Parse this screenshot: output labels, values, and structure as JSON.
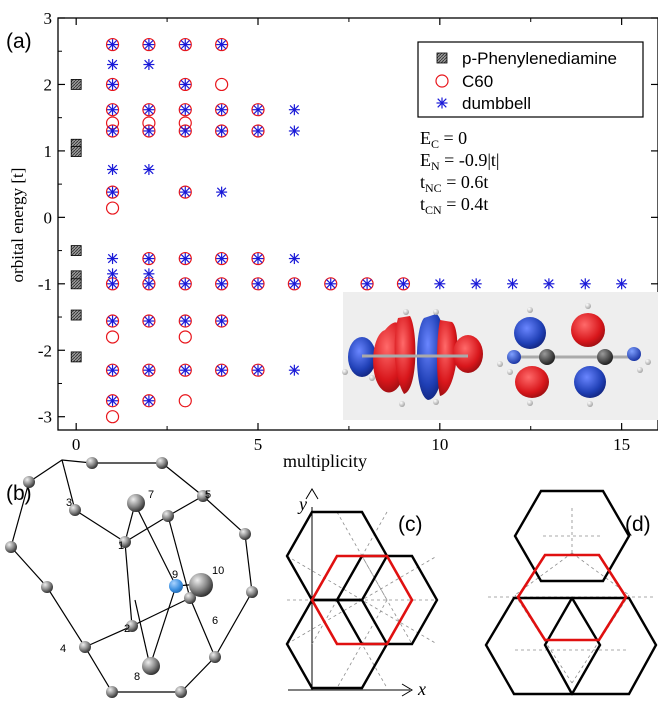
{
  "colors": {
    "phenylenediamine": "#555555",
    "c60": "#e8151b",
    "dumbbell": "#1a1ad8",
    "hexagon_red": "#e01010",
    "atom_blue": "#3b8fe0",
    "orbital_red": "#d8161b",
    "orbital_blue": "#1f3fb5"
  },
  "panels": {
    "a": "(a)",
    "b": "(b)",
    "c": "(c)",
    "d": "(d)"
  },
  "chart_data": {
    "type": "scatter",
    "xlabel": "multiplicity",
    "ylabel": "orbital energy [t]",
    "xlim": [
      -0.5,
      16
    ],
    "ylim": [
      -3.2,
      3
    ],
    "xticks": [
      "0",
      "5",
      "10",
      "15"
    ],
    "yticks": [
      "-3",
      "-2",
      "-1",
      "0",
      "1",
      "2",
      "3"
    ],
    "legend_position": "top-right",
    "legend": [
      "p-Phenylenediamine",
      "C60",
      "dumbbell"
    ],
    "parameters": [
      "E_C = 0",
      "E_N = -0.9|t|",
      "t_NC = 0.6t",
      "t_CN = 0.4t"
    ],
    "series": [
      {
        "name": "p-Phenylenediamine",
        "marker": "square",
        "x": [
          0,
          0,
          0,
          0,
          0,
          0,
          0,
          0
        ],
        "y": [
          2.0,
          1.1,
          0.99,
          -0.5,
          -0.88,
          -1.0,
          -1.47,
          -2.1
        ]
      },
      {
        "name": "C60",
        "marker": "circle",
        "x": [
          1,
          2,
          3,
          4,
          1,
          3,
          4,
          1,
          2,
          3,
          4,
          5,
          1,
          2,
          3,
          1,
          2,
          3,
          4,
          5,
          1,
          3,
          1,
          2,
          3,
          4,
          5,
          1,
          2,
          3,
          4,
          5,
          6,
          7,
          8,
          9,
          1,
          2,
          3,
          4,
          1,
          3,
          1,
          2,
          3,
          4,
          5,
          1,
          2,
          3,
          1
        ],
        "y": [
          2.6,
          2.6,
          2.6,
          2.6,
          2.0,
          2.0,
          2.0,
          1.62,
          1.62,
          1.62,
          1.62,
          1.62,
          1.42,
          1.42,
          1.42,
          1.3,
          1.3,
          1.3,
          1.3,
          1.3,
          0.38,
          0.38,
          0.14,
          -0.62,
          -0.62,
          -0.62,
          -0.62,
          -1.0,
          -1.0,
          -1.0,
          -1.0,
          -1.0,
          -1.0,
          -1.0,
          -1.0,
          -1.0,
          -1.56,
          -1.56,
          -1.56,
          -1.56,
          -1.8,
          -1.8,
          -2.3,
          -2.3,
          -2.3,
          -2.3,
          -2.3,
          -2.76,
          -2.76,
          -2.76,
          -3.0
        ]
      },
      {
        "name": "dumbbell",
        "marker": "star",
        "x": [
          1,
          2,
          3,
          4,
          1,
          2,
          1,
          3,
          1,
          2,
          3,
          4,
          5,
          6,
          1,
          2,
          3,
          4,
          5,
          6,
          1,
          2,
          1,
          3,
          4,
          1,
          2,
          3,
          4,
          5,
          6,
          1,
          2,
          1,
          2,
          3,
          4,
          5,
          6,
          7,
          8,
          9,
          10,
          11,
          12,
          13,
          14,
          15,
          1,
          2,
          3,
          4,
          1,
          2,
          3,
          4,
          5,
          6,
          1,
          2
        ],
        "y": [
          2.6,
          2.6,
          2.6,
          2.6,
          2.3,
          2.3,
          2.0,
          2.0,
          1.62,
          1.62,
          1.62,
          1.62,
          1.62,
          1.62,
          1.3,
          1.3,
          1.3,
          1.3,
          1.3,
          1.3,
          0.72,
          0.72,
          0.38,
          0.38,
          0.38,
          -0.62,
          -0.62,
          -0.62,
          -0.62,
          -0.62,
          -0.62,
          -0.85,
          -0.85,
          -1.0,
          -1.0,
          -1.0,
          -1.0,
          -1.0,
          -1.0,
          -1.0,
          -1.0,
          -1.0,
          -1.0,
          -1.0,
          -1.0,
          -1.0,
          -1.0,
          -1.0,
          -1.56,
          -1.56,
          -1.56,
          -1.56,
          -2.3,
          -2.3,
          -2.3,
          -2.3,
          -2.3,
          -2.3,
          -2.76,
          -2.76
        ]
      }
    ]
  },
  "diagram_b": {
    "atom_labels": [
      "1",
      "2",
      "3",
      "4",
      "5",
      "6",
      "7",
      "8",
      "9",
      "10"
    ]
  },
  "diagram_c": {
    "axis_x": "x",
    "axis_y": "y"
  }
}
